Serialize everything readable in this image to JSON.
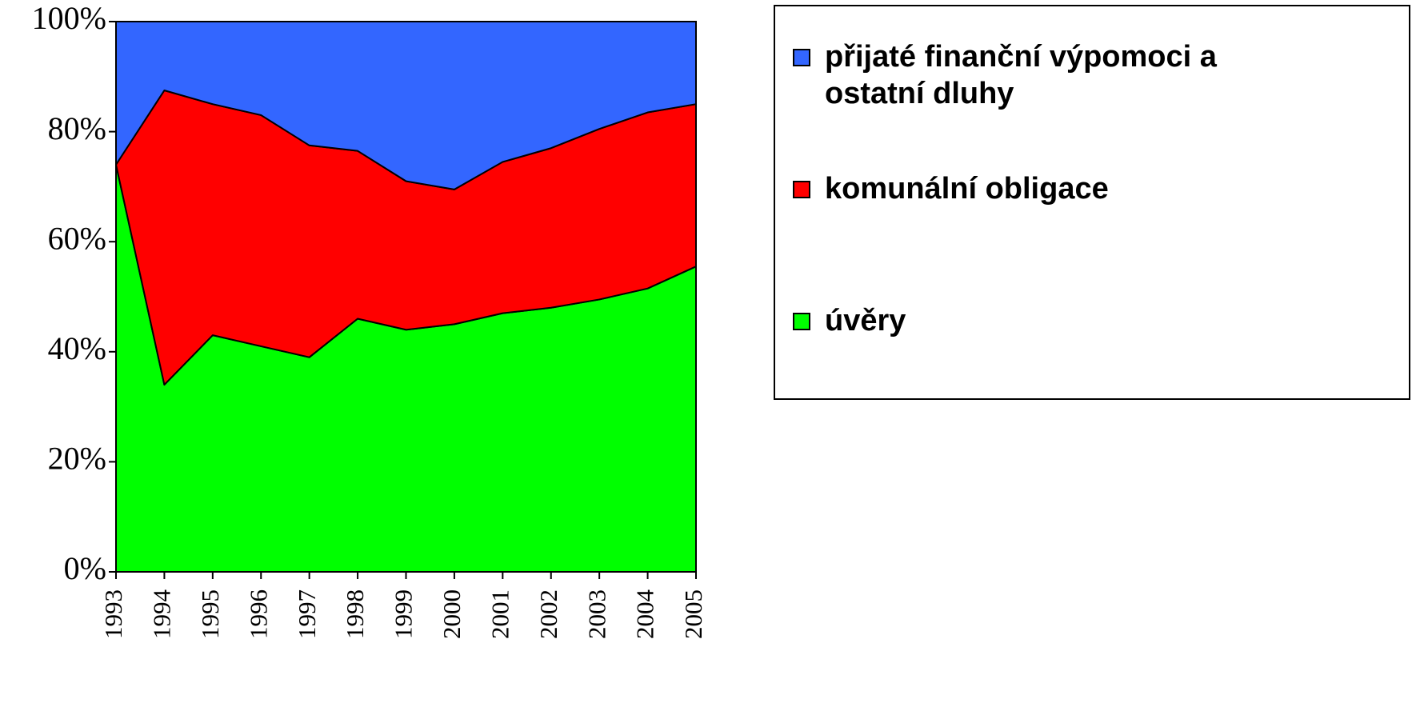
{
  "chart_data": {
    "type": "stacked-area-100",
    "categories": [
      "1993",
      "1994",
      "1995",
      "1996",
      "1997",
      "1998",
      "1999",
      "2000",
      "2001",
      "2002",
      "2003",
      "2004",
      "2005"
    ],
    "series": [
      {
        "name": "úvěry",
        "color": "#00ff00",
        "values": [
          74,
          34,
          43,
          41,
          39,
          46,
          44,
          45,
          47,
          48,
          49.5,
          51.5,
          55.5
        ]
      },
      {
        "name": "komunální obligace",
        "color": "#ff0000",
        "values": [
          0,
          53.5,
          42,
          42,
          38.5,
          30.5,
          27,
          24.5,
          27.5,
          29,
          31,
          32,
          29.5
        ]
      },
      {
        "name": "přijaté finanční výpomoci a ostatní dluhy",
        "color": "#3366ff",
        "values": [
          26,
          12.5,
          15,
          17,
          22.5,
          23.5,
          29,
          30.5,
          25.5,
          23,
          19.5,
          16.5,
          15
        ]
      }
    ],
    "ylim": [
      0,
      100
    ],
    "yticks": [
      {
        "value": 0,
        "label": "0%"
      },
      {
        "value": 20,
        "label": "20%"
      },
      {
        "value": 40,
        "label": "40%"
      },
      {
        "value": 60,
        "label": "60%"
      },
      {
        "value": 80,
        "label": "80%"
      },
      {
        "value": 100,
        "label": "100%"
      }
    ],
    "legend": "right"
  }
}
